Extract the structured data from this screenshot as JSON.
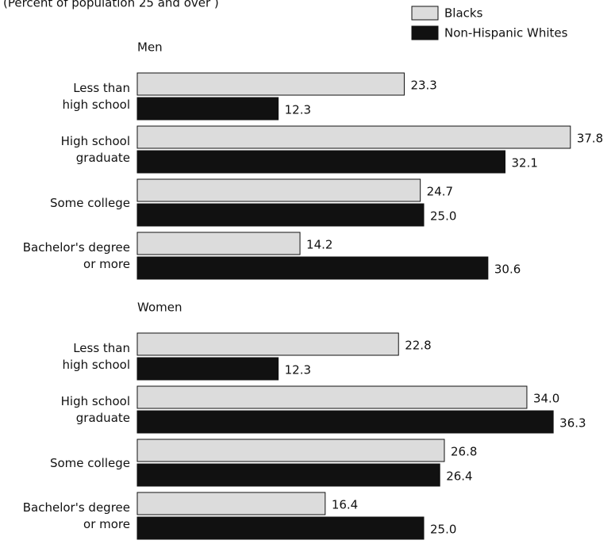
{
  "chart_data": {
    "type": "bar",
    "subtitle": "(Percent of population 25 and over )",
    "panels": [
      {
        "title": "Men"
      },
      {
        "title": "Women"
      }
    ],
    "categories": [
      "Less than\nhigh school",
      "High school\ngraduate",
      "Some college",
      "Bachelor's degree\nor more",
      "Less than\nhigh school",
      "High school\ngraduate",
      "Some college",
      "Bachelor's degree\nor more"
    ],
    "series": [
      {
        "name": "Blacks",
        "color": "#dcdcdc",
        "values": [
          23.3,
          37.8,
          24.7,
          14.2,
          22.8,
          34.0,
          26.8,
          16.4
        ],
        "value_labels": [
          "23.3",
          "37.8",
          "24.7",
          "14.2",
          "22.8",
          "34.0",
          "26.8",
          "16.4"
        ]
      },
      {
        "name": "Non-Hispanic Whites",
        "color": "#111111",
        "values": [
          12.3,
          32.1,
          25.0,
          30.6,
          12.3,
          36.3,
          26.4,
          25.0
        ],
        "value_labels": [
          "12.3",
          "32.1",
          "25.0",
          "30.6",
          "12.3",
          "36.3",
          "26.4",
          "25.0"
        ]
      }
    ]
  }
}
